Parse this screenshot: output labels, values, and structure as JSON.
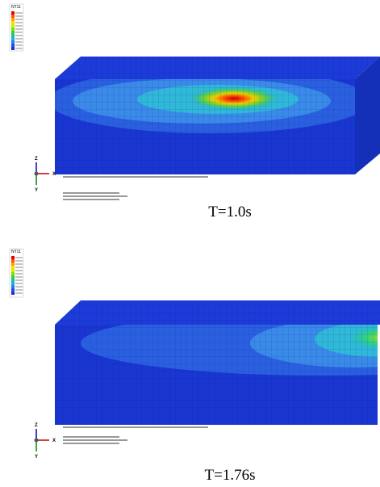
{
  "panels": [
    {
      "legend_title": "NT11",
      "caption": "T=1.0s"
    },
    {
      "legend_title": "NT11",
      "caption": "T=1.76s"
    }
  ],
  "axes": {
    "x": "X",
    "y": "Y",
    "z": "Z"
  }
}
